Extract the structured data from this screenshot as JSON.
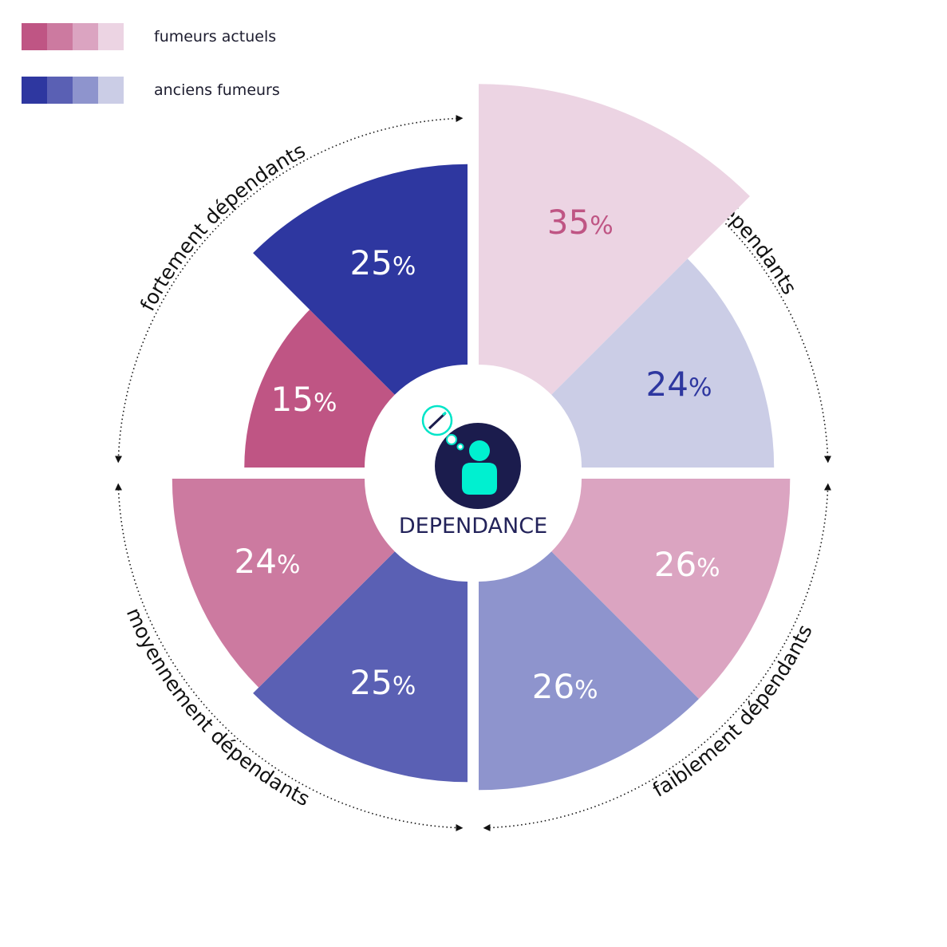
{
  "legend": [
    {
      "label": "fumeurs actuels",
      "colors": [
        "#bf5584",
        "#cc7aa0",
        "#dba4c1",
        "#ecd4e3"
      ]
    },
    {
      "label": "anciens fumeurs",
      "colors": [
        "#2e37a0",
        "#5a60b4",
        "#8e94cd",
        "#cbcde6"
      ]
    }
  ],
  "center_label": "DEPENDANCE",
  "chart_data": {
    "type": "pie",
    "title": "",
    "categories": [
      "non dépendants",
      "faiblement dépendants",
      "moyennement dépendants",
      "fortement dépendants"
    ],
    "series": [
      {
        "name": "fumeurs actuels",
        "values": [
          35,
          26,
          24,
          15
        ]
      },
      {
        "name": "anciens fumeurs",
        "values": [
          24,
          26,
          25,
          25
        ]
      }
    ],
    "unit": "%",
    "colors": {
      "fumeurs actuels": [
        "#ecd4e3",
        "#dba4c1",
        "#cc7aa0",
        "#bf5584"
      ],
      "anciens fumeurs": [
        "#cbcde6",
        "#8e94cd",
        "#5a60b4",
        "#2e37a0"
      ]
    },
    "label_colors": {
      "fumeurs actuels": [
        "#bf5584",
        "#ffffff",
        "#ffffff",
        "#ffffff"
      ],
      "anciens fumeurs": [
        "#2e37a0",
        "#ffffff",
        "#ffffff",
        "#ffffff"
      ]
    }
  }
}
